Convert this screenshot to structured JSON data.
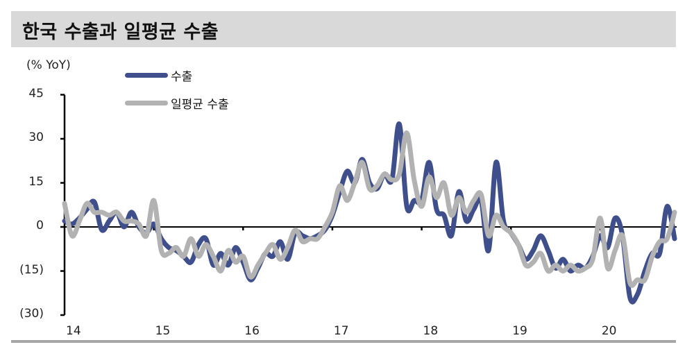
{
  "header": {
    "title": "한국 수출과 일평균 수출"
  },
  "axis": {
    "unit_label": "(% YoY)"
  },
  "legend": [
    {
      "label": "수출",
      "color": "#3f4f8c"
    },
    {
      "label": "일평균 수출",
      "color": "#b2b2b2"
    }
  ],
  "yticks": [
    {
      "label": "45",
      "value": 45
    },
    {
      "label": "30",
      "value": 30
    },
    {
      "label": "15",
      "value": 15
    },
    {
      "label": "0",
      "value": 0
    },
    {
      "label": "(15)",
      "value": -15
    },
    {
      "label": "(30)",
      "value": -30
    }
  ],
  "xticks": [
    {
      "label": "14",
      "index": 0
    },
    {
      "label": "15",
      "index": 12
    },
    {
      "label": "16",
      "index": 24
    },
    {
      "label": "17",
      "index": 36
    },
    {
      "label": "18",
      "index": 48
    },
    {
      "label": "19",
      "index": 60
    },
    {
      "label": "20",
      "index": 72
    }
  ],
  "chart_data": {
    "type": "line",
    "title": "한국 수출과 일평균 수출",
    "xlabel": "",
    "ylabel": "(% YoY)",
    "ylim": [
      -30,
      45
    ],
    "yticks": [
      45,
      30,
      15,
      0,
      -15,
      -30
    ],
    "ytick_labels": [
      "45",
      "30",
      "15",
      "0",
      "(15)",
      "(30)"
    ],
    "x_tick_labels": [
      "14",
      "15",
      "16",
      "17",
      "18",
      "19",
      "20"
    ],
    "x_frequency": "monthly, Jan 2014 – Nov 2020",
    "grid": false,
    "legend_position": "top-left",
    "series": [
      {
        "name": "수출",
        "color": "#3f4f8c",
        "values": [
          2,
          1,
          3,
          6,
          8.5,
          -1,
          2,
          5,
          0,
          5,
          0,
          -2,
          1,
          -4,
          -7,
          -8,
          -10,
          -12,
          -6,
          -4,
          -13,
          -9,
          -13,
          -7,
          -12,
          -18,
          -14,
          -9,
          -10,
          -5,
          -11,
          -2,
          -3,
          -4,
          -3,
          -1,
          4,
          12,
          19,
          15,
          23,
          15,
          13,
          18,
          16,
          35,
          7,
          9,
          9,
          22,
          6,
          4,
          -3,
          12,
          2,
          6,
          9,
          -8,
          22,
          2,
          -2,
          -6,
          -11,
          -8,
          -3,
          -8,
          -14,
          -11,
          -15,
          -13,
          -14,
          -10,
          -3,
          -7,
          3,
          -3,
          -24,
          -23,
          -15,
          -9,
          -9,
          7,
          -4
        ]
      },
      {
        "name": "일평균 수출",
        "color": "#b2b2b2",
        "values": [
          8,
          -3,
          2,
          8,
          5,
          5,
          4,
          5,
          2,
          2,
          1,
          -3,
          9,
          -8,
          -9,
          -7,
          -10,
          -4,
          -10,
          -6,
          -10,
          -15,
          -8,
          -12,
          -10,
          -17,
          -13,
          -9,
          -6,
          -11,
          -7,
          -1,
          -5,
          -4,
          -4,
          0,
          5,
          14,
          9,
          15,
          22,
          13,
          14,
          18,
          16,
          18,
          32,
          16,
          7,
          17,
          10,
          15,
          4,
          10,
          5,
          9,
          11,
          -3,
          4,
          0,
          -2,
          -6,
          -13,
          -12,
          -9,
          -15,
          -13,
          -15,
          -13,
          -15,
          -14,
          -11,
          3,
          -14,
          -8,
          -3,
          -19,
          -18,
          -18,
          -10,
          -5,
          -4,
          5
        ]
      }
    ]
  }
}
